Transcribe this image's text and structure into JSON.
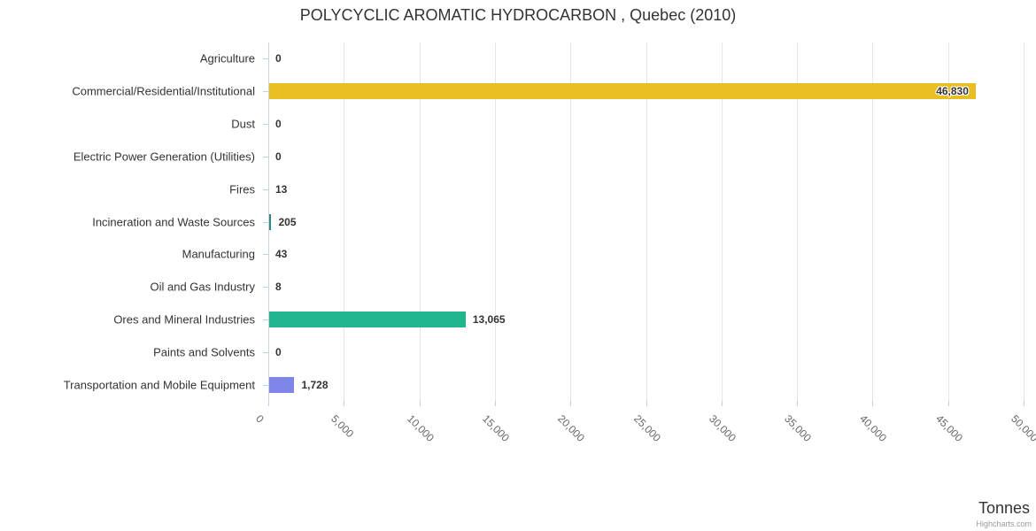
{
  "credits": {
    "label": "Highcharts.com"
  },
  "colors": {
    "background": "#ffffff",
    "gridline": "#e6e6e6",
    "axis_line": "#c9d4de",
    "tick_mark": "#c0d0e0",
    "title_text": "#333333",
    "category_text": "#333333",
    "x_tick_text": "#666666",
    "data_label_text": "#333333"
  },
  "chart_data": {
    "type": "bar",
    "orientation": "horizontal",
    "title": "POLYCYCLIC AROMATIC HYDROCARBON , Quebec (2010)",
    "xlabel": "Tonnes",
    "ylabel": "",
    "legend": false,
    "grid": true,
    "xlim": [
      0,
      50000
    ],
    "x_tick_interval": 5000,
    "x_tick_labels": [
      "0",
      "5,000",
      "10,000",
      "15,000",
      "20,000",
      "25,000",
      "30,000",
      "35,000",
      "40,000",
      "45,000",
      "50,000"
    ],
    "categories": [
      "Agriculture",
      "Commercial/Residential/Institutional",
      "Dust",
      "Electric Power Generation (Utilities)",
      "Fires",
      "Incineration and Waste Sources",
      "Manufacturing",
      "Oil and Gas Industry",
      "Ores and Mineral Industries",
      "Paints and Solvents",
      "Transportation and Mobile Equipment"
    ],
    "values": [
      0,
      46830,
      0,
      0,
      13,
      205,
      43,
      8,
      13065,
      0,
      1728
    ],
    "value_labels": [
      "0",
      "46,830",
      "0",
      "0",
      "13",
      "205",
      "43",
      "8",
      "13,065",
      "0",
      "1,728"
    ],
    "bar_colors": {
      "1": "#e9be23",
      "5": "#2a8c85",
      "8": "#21b68e",
      "10": "#8085e9"
    }
  }
}
